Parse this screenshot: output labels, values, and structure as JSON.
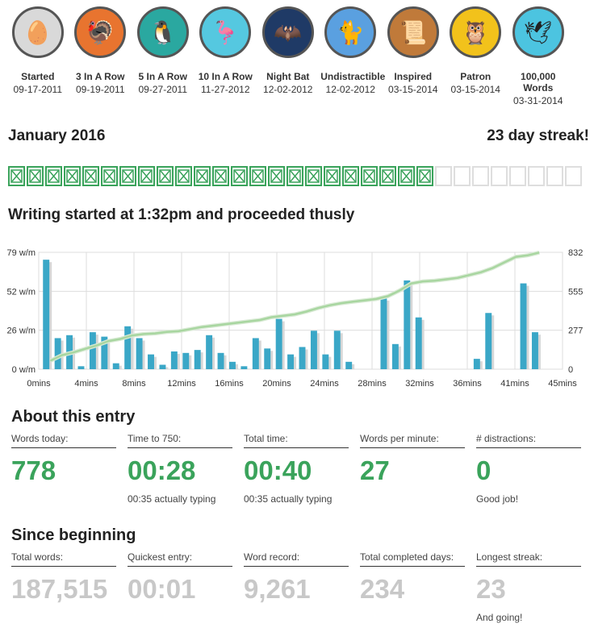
{
  "badges": [
    {
      "name": "Started",
      "date": "09-17-2011",
      "icon": "egg-icon",
      "bg": "#d9d9d9",
      "glyph": "🥚"
    },
    {
      "name": "3 In A Row",
      "date": "09-19-2011",
      "icon": "turkey-icon",
      "bg": "#e8742f",
      "glyph": "🦃"
    },
    {
      "name": "5 In A Row",
      "date": "09-27-2011",
      "icon": "penguin-icon",
      "bg": "#2aa8a0",
      "glyph": "🐧"
    },
    {
      "name": "10 In A Row",
      "date": "11-27-2012",
      "icon": "flamingo-icon",
      "bg": "#55c8e0",
      "glyph": "🦩"
    },
    {
      "name": "Night Bat",
      "date": "12-02-2012",
      "icon": "bat-icon",
      "bg": "#1f3a66",
      "glyph": "🦇"
    },
    {
      "name": "Undistractible",
      "date": "12-02-2012",
      "icon": "cat-icon",
      "bg": "#5aa0e0",
      "glyph": "🐈"
    },
    {
      "name": "Inspired",
      "date": "03-15-2014",
      "icon": "scroll-quill-icon",
      "bg": "#c07a3a",
      "glyph": "📜"
    },
    {
      "name": "Patron",
      "date": "03-15-2014",
      "icon": "owl-icon",
      "bg": "#f2c21b",
      "glyph": "🦉"
    },
    {
      "name": "100,000 Words",
      "date": "03-31-2014",
      "icon": "birds-icon",
      "bg": "#4cc4e0",
      "glyph": "🕊"
    }
  ],
  "month": {
    "label": "January 2016",
    "streak": "23 day streak!",
    "days_completed": 23,
    "days_total": 31
  },
  "chart_title": "Writing started at 1:32pm and proceeded thusly",
  "chart_data": {
    "type": "bar",
    "x": [
      0.5,
      1.5,
      2.5,
      3.5,
      4.5,
      5.5,
      6.5,
      7.5,
      8.5,
      9.5,
      10.5,
      11.5,
      12.5,
      13.5,
      14.5,
      15.5,
      16.5,
      17.5,
      18.5,
      19.5,
      20.5,
      21.5,
      22.5,
      23.5,
      24.5,
      25.5,
      26.5,
      27.5,
      28.5,
      29.5,
      30.5,
      31.5,
      32.5,
      33.5,
      34.5,
      35.5,
      36.5,
      37.5,
      38.5,
      39.5,
      40.5,
      41.5,
      42.5,
      43.5,
      44.5
    ],
    "series": [
      {
        "values": [
          74,
          21,
          23,
          2,
          25,
          22,
          4,
          29,
          21,
          10,
          3,
          12,
          11,
          13,
          23,
          11,
          5,
          2,
          21,
          14,
          34,
          10,
          15,
          26,
          10,
          26,
          5,
          0,
          0,
          48,
          17,
          60,
          35,
          0,
          0,
          0,
          0,
          7,
          38,
          0,
          0,
          58,
          25,
          0,
          0
        ]
      },
      {
        "values": [
          60,
          100,
          120,
          145,
          170,
          200,
          215,
          240,
          250,
          255,
          265,
          270,
          285,
          300,
          310,
          320,
          330,
          340,
          350,
          370,
          380,
          390,
          410,
          435,
          455,
          470,
          480,
          490,
          500,
          520,
          560,
          610,
          625,
          630,
          640,
          650,
          670,
          690,
          720,
          760,
          800,
          810,
          830,
          0,
          0
        ]
      }
    ],
    "xticks": [
      "0mins",
      "4mins",
      "8mins",
      "12mins",
      "16mins",
      "20mins",
      "24mins",
      "28mins",
      "32mins",
      "36mins",
      "41mins",
      "45mins"
    ],
    "xlim": [
      0,
      45
    ],
    "y_left": {
      "ticks": [
        "0 w/m",
        "26 w/m",
        "52 w/m",
        "79 w/m"
      ],
      "ylim": [
        0,
        79
      ]
    },
    "y_right": {
      "ticks": [
        "0",
        "277",
        "555",
        "832"
      ],
      "ylim": [
        0,
        832
      ]
    },
    "bar_color": "#3aa7c7",
    "line_color": "#a8d6a0",
    "grid": true
  },
  "about": {
    "title": "About this entry",
    "stats": [
      {
        "label": "Words today:",
        "value": "778",
        "note": ""
      },
      {
        "label": "Time to 750:",
        "value": "00:28",
        "note": "00:35 actually typing"
      },
      {
        "label": "Total time:",
        "value": "00:40",
        "note": "00:35 actually typing"
      },
      {
        "label": "Words per minute:",
        "value": "27",
        "note": ""
      },
      {
        "label": "# distractions:",
        "value": "0",
        "note": "Good job!"
      }
    ]
  },
  "since": {
    "title": "Since beginning",
    "stats": [
      {
        "label": "Total words:",
        "value": "187,515",
        "note": ""
      },
      {
        "label": "Quickest entry:",
        "value": "00:01",
        "note": ""
      },
      {
        "label": "Word record:",
        "value": "9,261",
        "note": ""
      },
      {
        "label": "Total completed days:",
        "value": "234",
        "note": ""
      },
      {
        "label": "Longest streak:",
        "value": "23",
        "note": "And going!"
      }
    ]
  },
  "colors": {
    "green": "#3aa35b",
    "grey_value": "#c8c8c8"
  }
}
